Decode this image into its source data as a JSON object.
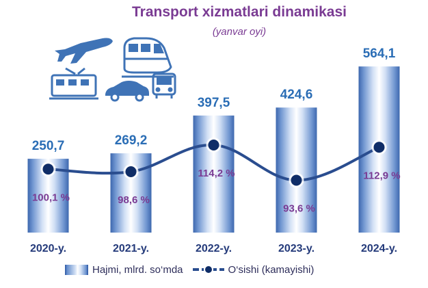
{
  "title": "Transport xizmatlari dinamikasi",
  "subtitle": "(yanvar oyi)",
  "legend": {
    "bar_label": "Hajmi, mlrd. so‘mda",
    "line_label": "O‘sishi (kamayishi)"
  },
  "icons": [
    "airplane-icon",
    "train-icon",
    "tram-icon",
    "car-icon",
    "bus-icon"
  ],
  "colors": {
    "title": "#7a3b93",
    "value_label": "#2a6db5",
    "line": "#2a4d8f",
    "percent_label": "#7a3b93",
    "category_label": "#243a7a",
    "bar_edge": "#3d67ae"
  },
  "chart_data": {
    "type": "bar",
    "title": "Transport xizmatlari dinamikasi",
    "subtitle": "(yanvar oyi)",
    "categories": [
      "2020-y.",
      "2021-y.",
      "2022-y.",
      "2023-y.",
      "2024-y."
    ],
    "series": [
      {
        "name": "Hajmi, mlrd. so‘mda",
        "type": "bar",
        "values": [
          250.7,
          269.2,
          397.5,
          424.6,
          564.1
        ],
        "labels": [
          "250,7",
          "269,2",
          "397,5",
          "424,6",
          "564,1"
        ]
      },
      {
        "name": "O‘sishi (kamayishi)",
        "type": "line",
        "values": [
          100.1,
          98.6,
          114.2,
          93.6,
          112.9
        ],
        "labels": [
          "100,1 %",
          "98,6 %",
          "114,2 %",
          "93,6 %",
          "112,9 %"
        ]
      }
    ],
    "ylim_bars": [
      0,
      600
    ],
    "ylim_line": [
      85,
      125
    ],
    "legend_position": "bottom",
    "grid": false
  }
}
